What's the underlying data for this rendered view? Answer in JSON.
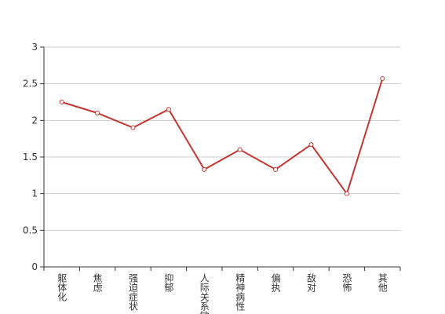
{
  "chart_data": {
    "type": "line",
    "categories": [
      "躯体化",
      "焦虑",
      "强迫症状",
      "抑郁",
      "人际关系敏感",
      "精神病性",
      "偏执",
      "敌对",
      "恐怖",
      "其他"
    ],
    "values": [
      2.25,
      2.1,
      1.9,
      2.15,
      1.33,
      1.6,
      1.33,
      1.67,
      1.0,
      2.57
    ],
    "color": "#c23531",
    "ylim": [
      0,
      3
    ],
    "yticks": [
      0,
      0.5,
      1,
      1.5,
      2,
      2.5,
      3
    ],
    "grid": true
  }
}
